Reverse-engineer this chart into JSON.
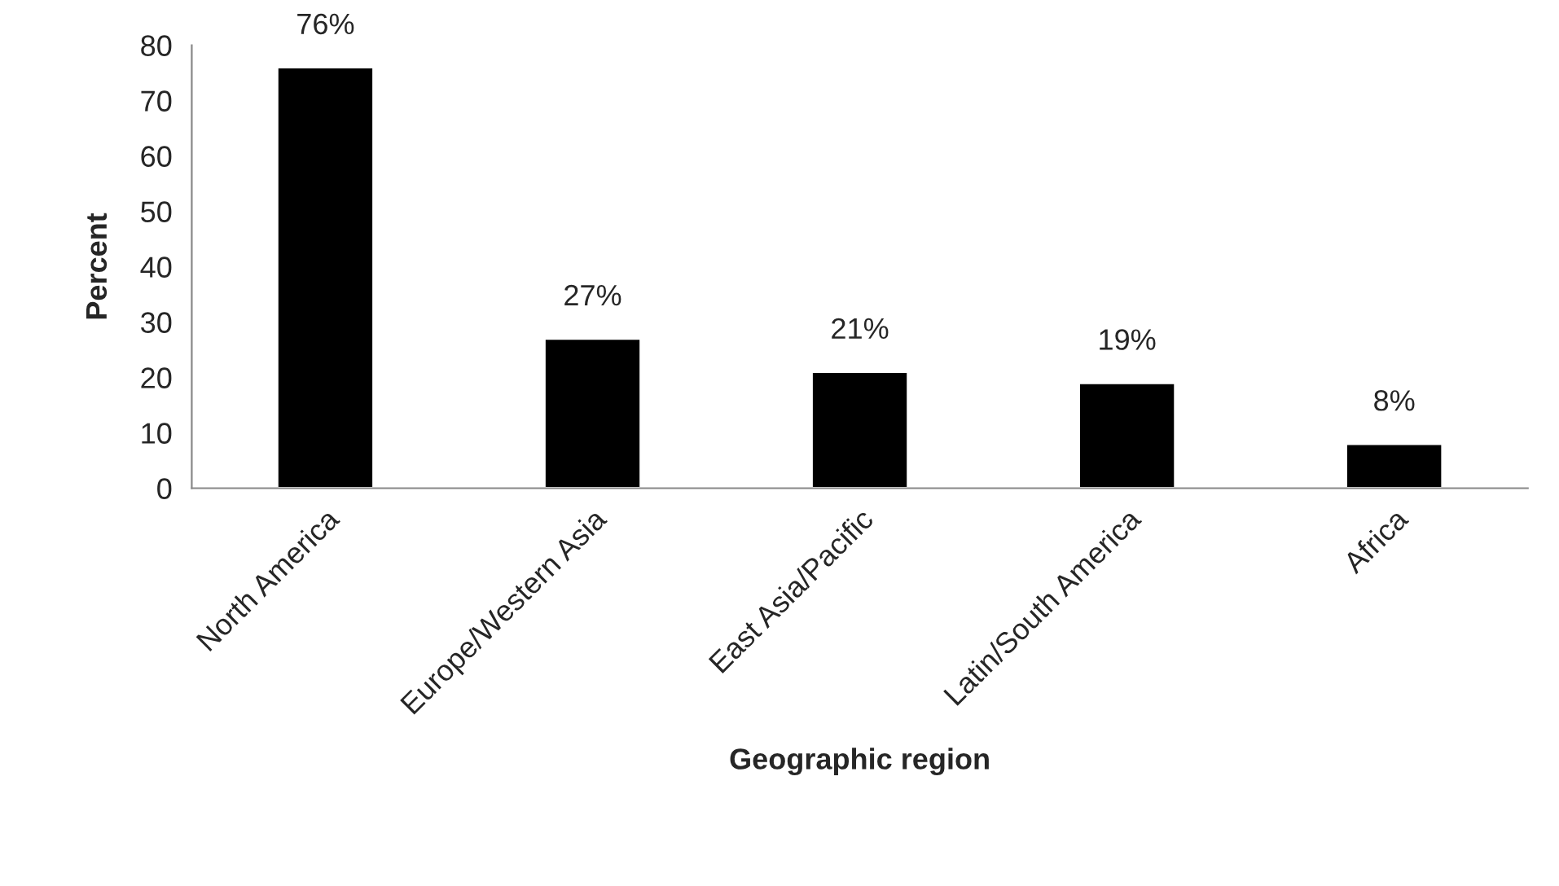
{
  "chart_data": {
    "type": "bar",
    "xlabel": "Geographic region",
    "ylabel": "Percent",
    "categories": [
      "North America",
      "Europe/Western Asia",
      "East Asia/Pacific",
      "Latin/South America",
      "Africa"
    ],
    "values": [
      76,
      27,
      21,
      19,
      8
    ],
    "value_labels": [
      "76%",
      "27%",
      "21%",
      "19%",
      "8%"
    ],
    "color": "#000000",
    "ylim": [
      0,
      80
    ],
    "yticks": [
      0,
      10,
      20,
      30,
      40,
      50,
      60,
      70,
      80
    ],
    "grid": false,
    "legend": false
  }
}
